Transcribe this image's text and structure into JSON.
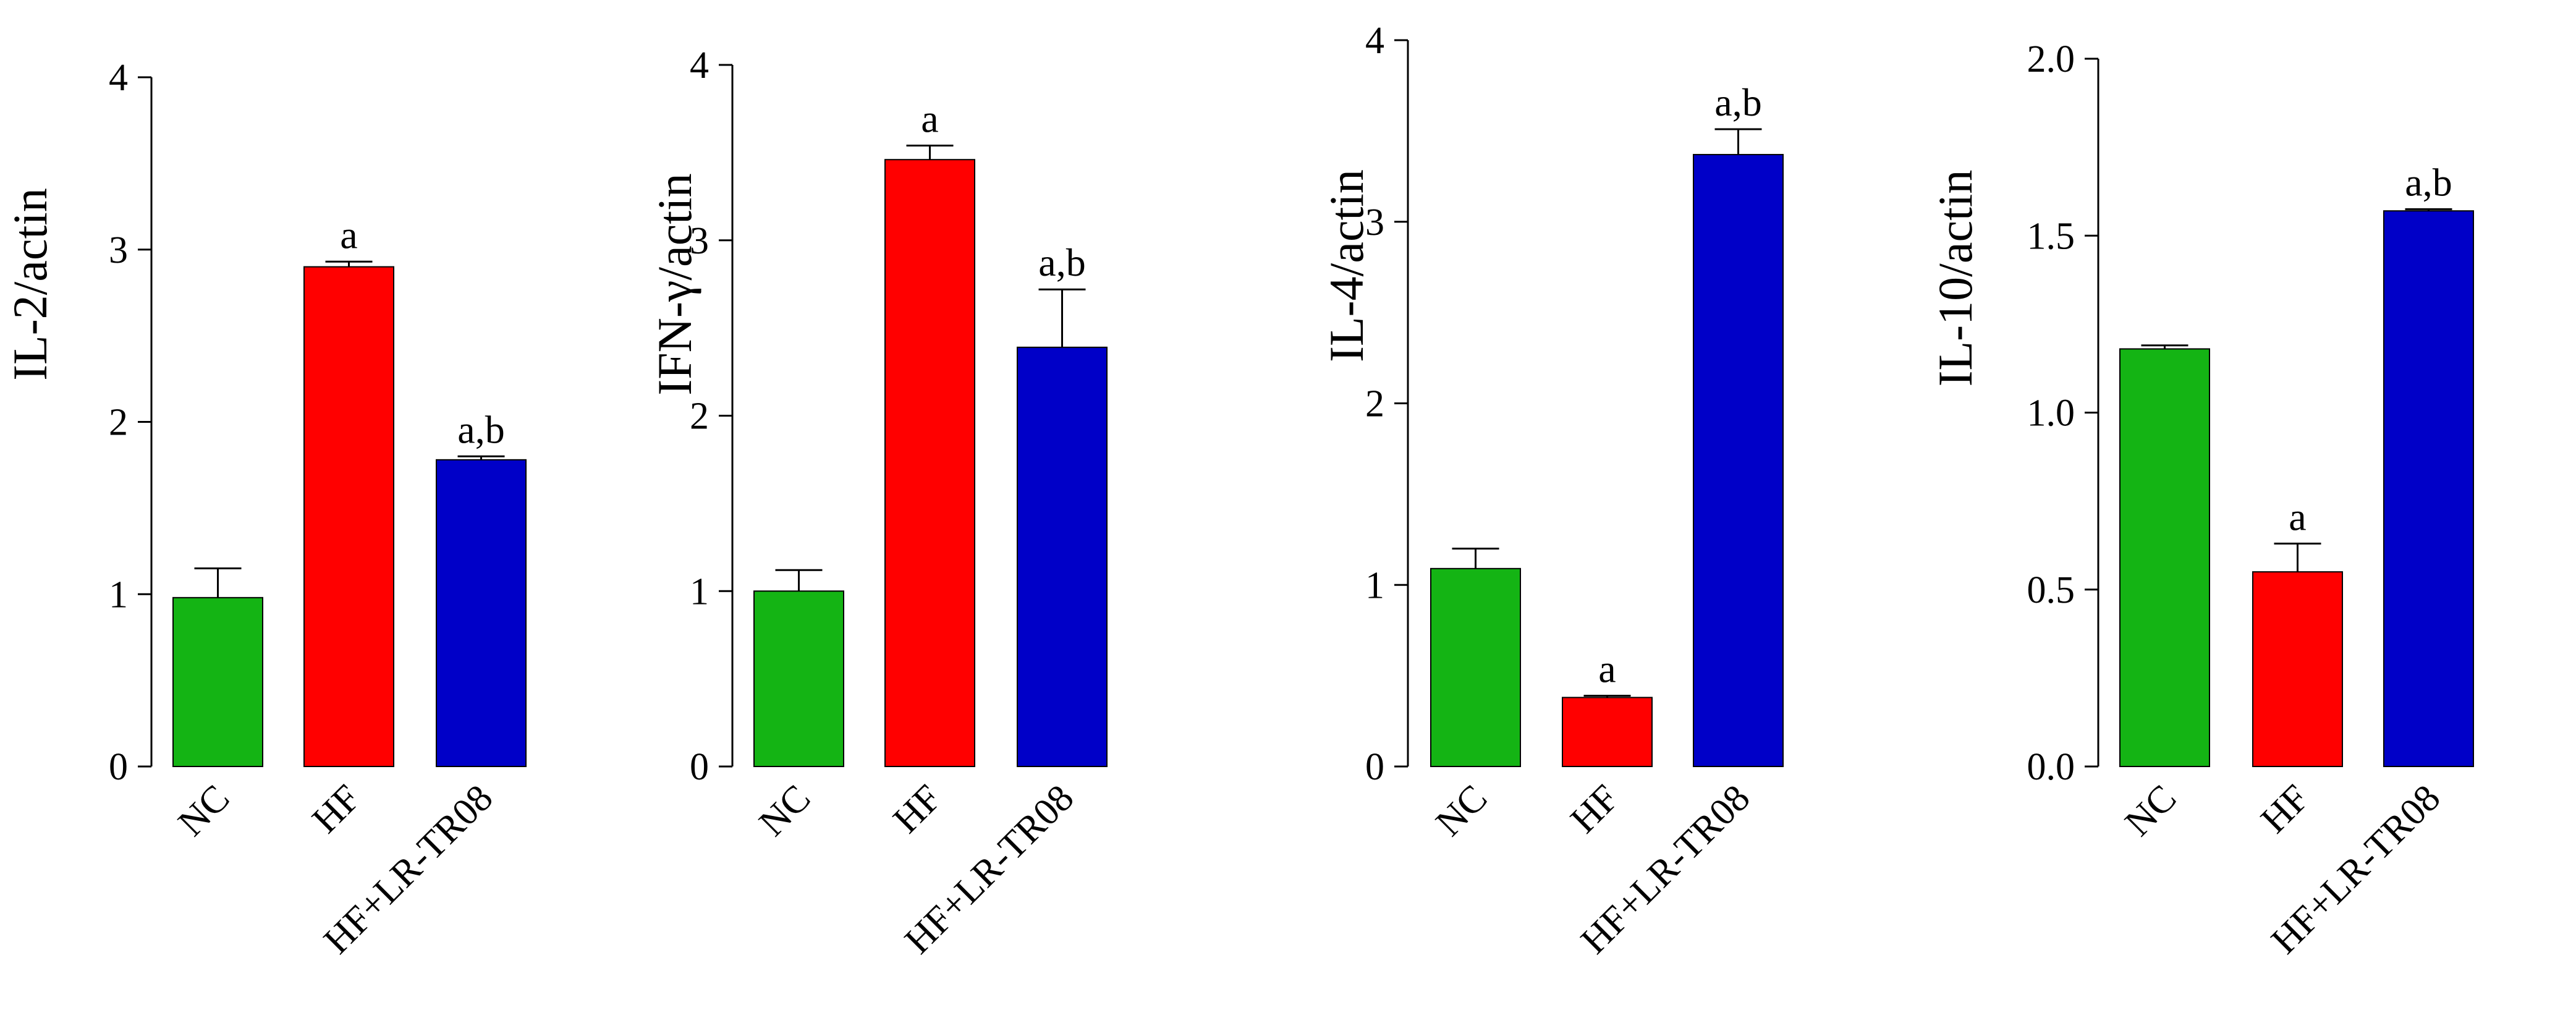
{
  "figure": {
    "categories": [
      "NC",
      "HF",
      "HF+LR-TR08"
    ],
    "colors": [
      "#14b414",
      "#ff0000",
      "#0000c8"
    ]
  },
  "chart_data": [
    {
      "type": "bar",
      "ylabel": "IL-2/actin",
      "categories": [
        "NC",
        "HF",
        "HF+LR-TR08"
      ],
      "values": [
        0.98,
        2.9,
        1.78
      ],
      "errors": [
        0.17,
        0.03,
        0.02
      ],
      "annotations": [
        "",
        "a",
        "a,b"
      ],
      "ylim": [
        0,
        4
      ],
      "yticks": [
        0,
        1,
        2,
        3,
        4
      ],
      "ytick_labels": [
        "0",
        "1",
        "2",
        "3",
        "4"
      ]
    },
    {
      "type": "bar",
      "ylabel": "IFN-γ/actin",
      "categories": [
        "NC",
        "HF",
        "HF+LR-TR08"
      ],
      "values": [
        1.0,
        3.46,
        2.39
      ],
      "errors": [
        0.12,
        0.08,
        0.33
      ],
      "annotations": [
        "",
        "a",
        "a,b"
      ],
      "ylim": [
        0,
        4
      ],
      "yticks": [
        0,
        1,
        2,
        3,
        4
      ],
      "ytick_labels": [
        "0",
        "1",
        "2",
        "3",
        "4"
      ]
    },
    {
      "type": "bar",
      "ylabel": "IL-4/actin",
      "categories": [
        "NC",
        "HF",
        "HF+LR-TR08"
      ],
      "values": [
        1.09,
        0.38,
        3.37
      ],
      "errors": [
        0.11,
        0.01,
        0.14
      ],
      "annotations": [
        "",
        "a",
        "a,b"
      ],
      "ylim": [
        0,
        4
      ],
      "yticks": [
        0,
        1,
        2,
        3,
        4
      ],
      "ytick_labels": [
        "0",
        "1",
        "2",
        "3",
        "4"
      ]
    },
    {
      "type": "bar",
      "ylabel": "IL-10/actin",
      "categories": [
        "NC",
        "HF",
        "HF+LR-TR08"
      ],
      "values": [
        1.18,
        0.55,
        1.57
      ],
      "errors": [
        0.01,
        0.08,
        0.005
      ],
      "annotations": [
        "",
        "a",
        "a,b"
      ],
      "ylim": [
        0,
        2
      ],
      "yticks": [
        0,
        0.5,
        1,
        1.5,
        2
      ],
      "ytick_labels": [
        "0.0",
        "0.5",
        "1.0",
        "1.5",
        "2.0"
      ]
    }
  ]
}
